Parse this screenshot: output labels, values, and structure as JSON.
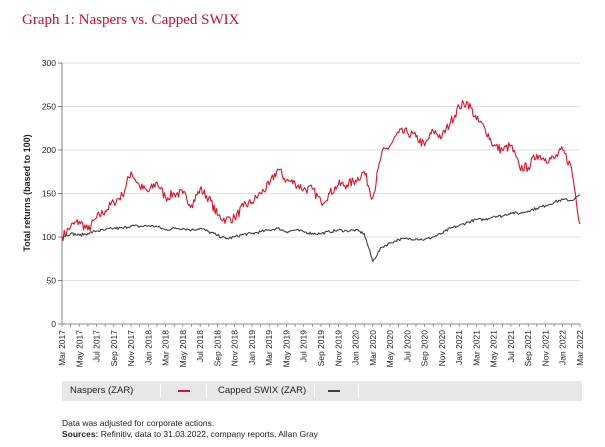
{
  "title": "Graph 1: Naspers vs. Capped SWIX",
  "legend": {
    "series1_label": "Naspers (ZAR)",
    "series2_label": "Capped SWIX (ZAR)"
  },
  "notes": {
    "line1": "Data was adjusted for corporate actions.",
    "sources_label": "Sources:",
    "sources_text": " Refinitiv, data to 31.03.2022, company reports, Allan Gray"
  },
  "colors": {
    "naspers": "#d7142a",
    "swix": "#404040",
    "grid": "#d9d9d9",
    "axis": "#666666"
  },
  "chart_data": {
    "type": "line",
    "ylabel": "Total returns (based to 100)",
    "ylim": [
      0,
      300
    ],
    "yticks": [
      0,
      50,
      100,
      150,
      200,
      250,
      300
    ],
    "xlim": [
      "Mar 2017",
      "Mar 2022"
    ],
    "xticks": [
      "Mar 2017",
      "May 2017",
      "Jul 2017",
      "Sep 2017",
      "Nov 2017",
      "Jan 2018",
      "Mar 2018",
      "May 2018",
      "Jul 2018",
      "Sep 2018",
      "Nov 2018",
      "Jan 2019",
      "Mar 2019",
      "May 2019",
      "Jul 2019",
      "Sep 2019",
      "Nov 2019",
      "Jan 2020",
      "Mar 2020",
      "May 2020",
      "Jul 2020",
      "Sep 2020",
      "Nov 2020",
      "Jan 2021",
      "Mar 2021",
      "May 2021",
      "Jul 2021",
      "Sep 2021",
      "Nov 2021",
      "Jan 2022",
      "Mar 2022"
    ],
    "grid": "horizontal",
    "legend_position": "bottom",
    "series": [
      {
        "name": "Naspers (ZAR)",
        "color": "#d7142a",
        "x": [
          "Mar 2017",
          "Apr 2017",
          "May 2017",
          "Jun 2017",
          "Jul 2017",
          "Aug 2017",
          "Sep 2017",
          "Oct 2017",
          "Nov 2017",
          "Dec 2017",
          "Jan 2018",
          "Feb 2018",
          "Mar 2018",
          "Apr 2018",
          "May 2018",
          "Jun 2018",
          "Jul 2018",
          "Aug 2018",
          "Sep 2018",
          "Oct 2018",
          "Nov 2018",
          "Dec 2018",
          "Jan 2019",
          "Feb 2019",
          "Mar 2019",
          "Apr 2019",
          "May 2019",
          "Jun 2019",
          "Jul 2019",
          "Aug 2019",
          "Sep 2019",
          "Oct 2019",
          "Nov 2019",
          "Dec 2019",
          "Jan 2020",
          "Feb 2020",
          "Mar 2020",
          "Apr 2020",
          "May 2020",
          "Jun 2020",
          "Jul 2020",
          "Aug 2020",
          "Sep 2020",
          "Oct 2020",
          "Nov 2020",
          "Dec 2020",
          "Jan 2021",
          "Feb 2021",
          "Mar 2021",
          "Apr 2021",
          "May 2021",
          "Jun 2021",
          "Jul 2021",
          "Aug 2021",
          "Sep 2021",
          "Oct 2021",
          "Nov 2021",
          "Dec 2021",
          "Jan 2022",
          "Feb 2022",
          "Mar 2022"
        ],
        "values": [
          100,
          112,
          118,
          108,
          122,
          130,
          140,
          148,
          175,
          158,
          152,
          163,
          145,
          150,
          150,
          137,
          155,
          145,
          125,
          120,
          122,
          135,
          140,
          150,
          160,
          178,
          165,
          162,
          155,
          155,
          140,
          150,
          160,
          160,
          165,
          175,
          145,
          195,
          205,
          220,
          220,
          215,
          205,
          222,
          215,
          232,
          250,
          255,
          235,
          225,
          205,
          200,
          205,
          180,
          180,
          195,
          190,
          190,
          200,
          180,
          115
        ]
      },
      {
        "name": "Capped SWIX (ZAR)",
        "color": "#404040",
        "x": [
          "Mar 2017",
          "Apr 2017",
          "May 2017",
          "Jun 2017",
          "Jul 2017",
          "Aug 2017",
          "Sep 2017",
          "Oct 2017",
          "Nov 2017",
          "Dec 2017",
          "Jan 2018",
          "Feb 2018",
          "Mar 2018",
          "Apr 2018",
          "May 2018",
          "Jun 2018",
          "Jul 2018",
          "Aug 2018",
          "Sep 2018",
          "Oct 2018",
          "Nov 2018",
          "Dec 2018",
          "Jan 2019",
          "Feb 2019",
          "Mar 2019",
          "Apr 2019",
          "May 2019",
          "Jun 2019",
          "Jul 2019",
          "Aug 2019",
          "Sep 2019",
          "Oct 2019",
          "Nov 2019",
          "Dec 2019",
          "Jan 2020",
          "Feb 2020",
          "Mar 2020",
          "Apr 2020",
          "May 2020",
          "Jun 2020",
          "Jul 2020",
          "Aug 2020",
          "Sep 2020",
          "Oct 2020",
          "Nov 2020",
          "Dec 2020",
          "Jan 2021",
          "Feb 2021",
          "Mar 2021",
          "Apr 2021",
          "May 2021",
          "Jun 2021",
          "Jul 2021",
          "Aug 2021",
          "Sep 2021",
          "Oct 2021",
          "Nov 2021",
          "Dec 2021",
          "Jan 2022",
          "Feb 2022",
          "Mar 2022"
        ],
        "values": [
          100,
          104,
          102,
          104,
          107,
          108,
          110,
          110,
          113,
          112,
          113,
          112,
          108,
          110,
          110,
          108,
          110,
          106,
          102,
          98,
          100,
          103,
          104,
          106,
          108,
          110,
          106,
          108,
          106,
          104,
          104,
          106,
          108,
          107,
          108,
          104,
          72,
          88,
          93,
          97,
          98,
          98,
          97,
          100,
          104,
          110,
          113,
          117,
          120,
          120,
          124,
          124,
          128,
          127,
          130,
          133,
          136,
          140,
          143,
          142,
          148
        ]
      }
    ]
  }
}
